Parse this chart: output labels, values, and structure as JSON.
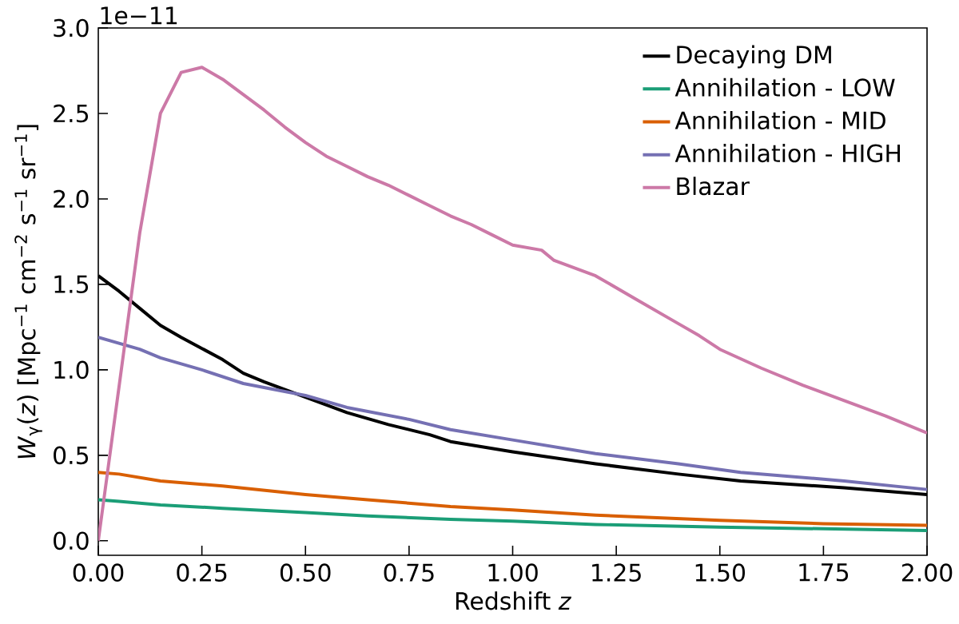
{
  "chart_data": {
    "type": "line",
    "xlabel": "Redshift *z*",
    "ylabel": "*W*$_{γ}$(*z*) [Mpc$^{−1}$ cm$^{−2}$ s$^{−1}$ sr$^{−1}$]",
    "annotations": [
      "1e−11"
    ],
    "xlim": [
      0,
      2
    ],
    "ylim": [
      -0.085,
      3.0
    ],
    "xticks": [
      {
        "value": 0,
        "label": "0.00"
      },
      {
        "value": 0.25,
        "label": "0.25"
      },
      {
        "value": 0.5,
        "label": "0.50"
      },
      {
        "value": 0.75,
        "label": "0.75"
      },
      {
        "value": 1,
        "label": "1.00"
      },
      {
        "value": 1.25,
        "label": "1.25"
      },
      {
        "value": 1.5,
        "label": "1.50"
      },
      {
        "value": 1.75,
        "label": "1.75"
      },
      {
        "value": 2,
        "label": "2.00"
      }
    ],
    "yticks": [
      {
        "value": 0,
        "label": "0.0"
      },
      {
        "value": 0.5,
        "label": "0.5"
      },
      {
        "value": 1,
        "label": "1.0"
      },
      {
        "value": 1.5,
        "label": "1.5"
      },
      {
        "value": 2,
        "label": "2.0"
      },
      {
        "value": 2.5,
        "label": "2.5"
      },
      {
        "value": 3,
        "label": "3.0"
      }
    ],
    "legend": "top right",
    "grid": false,
    "marker": "none",
    "line_style": "solid",
    "series": [
      {
        "name": "Decaying DM",
        "color": "#000000",
        "x": [
          0,
          0.05,
          0.1,
          0.15,
          0.2,
          0.3,
          0.35,
          0.4,
          0.5,
          0.6,
          0.7,
          0.8,
          0.85,
          1.0,
          1.2,
          1.4,
          1.55,
          1.8,
          2.0
        ],
        "values": [
          1.55,
          1.46,
          1.36,
          1.26,
          1.19,
          1.06,
          0.98,
          0.93,
          0.84,
          0.75,
          0.68,
          0.62,
          0.58,
          0.52,
          0.45,
          0.39,
          0.35,
          0.31,
          0.27
        ]
      },
      {
        "name": "Annihilation - LOW",
        "color": "#1b9e77",
        "x": [
          0,
          0.05,
          0.15,
          0.3,
          0.5,
          0.65,
          0.85,
          1.0,
          1.2,
          1.5,
          1.75,
          2.0
        ],
        "values": [
          0.24,
          0.23,
          0.21,
          0.19,
          0.165,
          0.145,
          0.125,
          0.115,
          0.095,
          0.08,
          0.07,
          0.06
        ]
      },
      {
        "name": "Annihilation - MID",
        "color": "#d95f02",
        "x": [
          0,
          0.05,
          0.15,
          0.3,
          0.5,
          0.65,
          0.85,
          1.0,
          1.2,
          1.5,
          1.75,
          2.0
        ],
        "values": [
          0.4,
          0.39,
          0.35,
          0.32,
          0.27,
          0.24,
          0.2,
          0.18,
          0.15,
          0.12,
          0.1,
          0.09
        ]
      },
      {
        "name": "Annihilation - HIGH",
        "color": "#7570b3",
        "x": [
          0,
          0.1,
          0.15,
          0.25,
          0.35,
          0.5,
          0.6,
          0.75,
          0.85,
          1.0,
          1.2,
          1.4,
          1.55,
          1.8,
          2.0
        ],
        "values": [
          1.19,
          1.12,
          1.07,
          1.0,
          0.92,
          0.85,
          0.78,
          0.71,
          0.65,
          0.59,
          0.51,
          0.45,
          0.4,
          0.35,
          0.3
        ]
      },
      {
        "name": "Blazar",
        "color": "#cc79a7",
        "x": [
          0,
          0.1,
          0.15,
          0.2,
          0.25,
          0.3,
          0.35,
          0.4,
          0.45,
          0.5,
          0.55,
          0.6,
          0.65,
          0.7,
          0.75,
          0.8,
          0.85,
          0.9,
          0.95,
          1.0,
          1.07,
          1.1,
          1.2,
          1.3,
          1.4,
          1.45,
          1.5,
          1.6,
          1.7,
          1.8,
          1.9,
          2.0
        ],
        "values": [
          0,
          1.8,
          2.5,
          2.74,
          2.77,
          2.7,
          2.61,
          2.52,
          2.42,
          2.33,
          2.25,
          2.19,
          2.13,
          2.08,
          2.02,
          1.96,
          1.9,
          1.85,
          1.79,
          1.73,
          1.7,
          1.64,
          1.55,
          1.41,
          1.27,
          1.2,
          1.12,
          1.01,
          0.91,
          0.82,
          0.73,
          0.63
        ]
      }
    ]
  }
}
